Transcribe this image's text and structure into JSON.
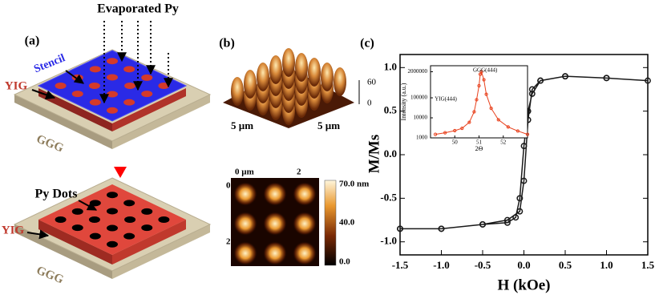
{
  "panels": {
    "a": {
      "label": "(a)",
      "evaporated": "Evaporated Py",
      "stencil": "Stencil",
      "yig_top": "YIG",
      "ggg_top": "GGG",
      "py_dots": "Py Dots",
      "yig_bottom": "YIG",
      "ggg_bottom": "GGG"
    },
    "b": {
      "label": "(b)",
      "z_top": "60",
      "z_bottom": "0",
      "x_len": "5 µm",
      "y_len": "5 µm",
      "map_x0": "0 µm",
      "map_x2": "2",
      "map_y0": "0",
      "map_y2": "2",
      "bar_top": "70.0 nm",
      "bar_mid": "40.0",
      "bar_bottom": "0.0"
    },
    "c": {
      "label": "(c)"
    }
  },
  "chart_data": [
    {
      "type": "line",
      "xlabel": "H (kOe)",
      "ylabel": "M/Ms",
      "x": [
        -1.5,
        -1.0,
        -0.5,
        -0.2,
        -0.05,
        0.0,
        0.05,
        0.1,
        0.2,
        0.5,
        1.0,
        1.5,
        1.0,
        0.5,
        0.2,
        0.1,
        0.05,
        0.0,
        -0.05,
        -0.1,
        -0.2,
        -0.5,
        -1.0,
        -1.5
      ],
      "series": [
        {
          "color": "#1a1a1a",
          "values": [
            -0.85,
            -0.85,
            -0.8,
            -0.75,
            -0.65,
            -0.3,
            0.4,
            0.75,
            0.85,
            0.9,
            0.88,
            0.85,
            0.88,
            0.9,
            0.85,
            0.7,
            0.5,
            0.1,
            -0.5,
            -0.72,
            -0.78,
            -0.8,
            -0.85,
            -0.85
          ]
        }
      ],
      "xlim": [
        -1.5,
        1.5
      ],
      "ylim": [
        -1.15,
        1.15
      ],
      "xticks": [
        -1.5,
        {
          "value": -1,
          "label": "-1.0"
        },
        -0.5,
        {
          "value": 0,
          "label": "0.0"
        },
        0.5,
        {
          "value": 1,
          "label": "1.0"
        },
        1.5
      ],
      "yticks": [
        {
          "value": -1,
          "label": "-1.0"
        },
        -0.5,
        {
          "value": 0,
          "label": "0.0"
        },
        0.5,
        {
          "value": 1,
          "label": "1.0"
        }
      ]
    },
    {
      "type": "line",
      "xlabel": "2Θ",
      "ylabel": "Intensity (a.u.)",
      "log_y": true,
      "annotations": [
        "GGG(444)",
        "YIG(444)"
      ],
      "x": [
        49.2,
        49.6,
        50.0,
        50.3,
        50.6,
        50.8,
        50.9,
        51.0,
        51.05,
        51.1,
        51.2,
        51.3,
        51.5,
        51.8,
        52.2,
        52.6,
        53.0
      ],
      "series": [
        {
          "color": "#e8401c",
          "values": [
            1500,
            1800,
            2300,
            3000,
            6000,
            20000,
            80000,
            400000,
            1500000,
            2000000,
            800000,
            150000,
            30000,
            8000,
            3500,
            2200,
            1500
          ]
        }
      ],
      "xlim": [
        49,
        53
      ],
      "ylim": [
        1000,
        4000000
      ],
      "xticks": [
        50,
        51,
        52
      ],
      "yticks": [
        1000,
        10000,
        100000,
        2000000
      ]
    }
  ]
}
